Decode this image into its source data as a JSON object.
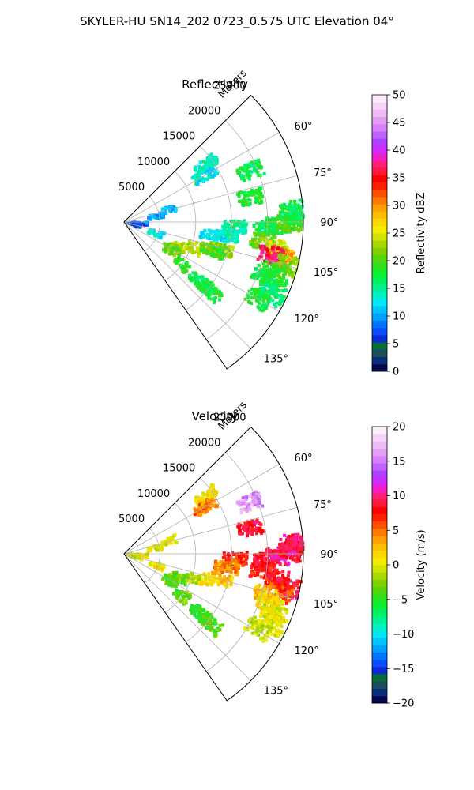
{
  "figure": {
    "title": "SKYLER-HU  SN14_202  0723_0.575 UTC Elevation 04°"
  },
  "chart_data": [
    {
      "type": "heatmap",
      "projection": "polar-sector",
      "title": "Reflectivity",
      "radial_label": "Meters",
      "radial_ticks": [
        5000,
        10000,
        15000,
        20000,
        25000
      ],
      "radial_tick_labels": [
        "5000",
        "10000",
        "15000",
        "20000",
        "25000"
      ],
      "r_range": [
        0,
        25000
      ],
      "azimuth_range_deg": [
        45,
        145
      ],
      "angle_ticks_deg": [
        60,
        75,
        90,
        105,
        120,
        135
      ],
      "angle_tick_labels": [
        "60°",
        "75°",
        "90°",
        "105°",
        "120°",
        "135°"
      ],
      "grid": true,
      "colorbar": {
        "label": "Reflectivity dBZ",
        "range": [
          0,
          50
        ],
        "ticks": [
          0,
          5,
          10,
          15,
          20,
          25,
          30,
          35,
          40,
          45,
          50
        ],
        "tick_labels": [
          "0",
          "5",
          "10",
          "15",
          "20",
          "25",
          "30",
          "35",
          "40",
          "45",
          "50"
        ],
        "colors": [
          "#06084e",
          "#0a2f7a",
          "#1d4d5a",
          "#0b6b3a",
          "#0a2ccf",
          "#0a4dff",
          "#0073ff",
          "#00a0ff",
          "#00c4ff",
          "#00e8f5",
          "#00f0c0",
          "#00f090",
          "#00f060",
          "#10ee30",
          "#30e020",
          "#55d410",
          "#80d000",
          "#a8d800",
          "#d0e400",
          "#f4ec00",
          "#ffd800",
          "#ffbf00",
          "#ffa000",
          "#ff7a00",
          "#ff5000",
          "#ff2000",
          "#ff0000",
          "#ff1a3c",
          "#ff1e78",
          "#f020c8",
          "#cf2cff",
          "#b040ff",
          "#c060ff",
          "#d880ff",
          "#e4a0f0",
          "#eebcf4",
          "#f6d6f8",
          "#fdecfc"
        ]
      },
      "echo_cells": [
        {
          "az": 93.0,
          "r": 19800,
          "value": 16
        },
        {
          "az": 91.5,
          "r": 21500,
          "value": 18
        },
        {
          "az": 90.0,
          "r": 23000,
          "value": 20
        },
        {
          "az": 88.0,
          "r": 24500,
          "value": 19
        },
        {
          "az": 86.0,
          "r": 23500,
          "value": 17
        },
        {
          "az": 92.5,
          "r": 15500,
          "value": 15
        },
        {
          "az": 98.0,
          "r": 19500,
          "value": 21
        },
        {
          "az": 100.0,
          "r": 21500,
          "value": 24
        },
        {
          "az": 103.0,
          "r": 22500,
          "value": 30
        },
        {
          "az": 102.5,
          "r": 21000,
          "value": 37
        },
        {
          "az": 105.0,
          "r": 23800,
          "value": 22
        },
        {
          "az": 108.0,
          "r": 22000,
          "value": 19
        },
        {
          "az": 110.5,
          "r": 21000,
          "value": 17
        },
        {
          "az": 113.0,
          "r": 22500,
          "value": 18
        },
        {
          "az": 116.0,
          "r": 23000,
          "value": 16
        },
        {
          "az": 120.0,
          "r": 21500,
          "value": 18
        },
        {
          "az": 105.5,
          "r": 14000,
          "value": 22
        },
        {
          "az": 110.0,
          "r": 10500,
          "value": 23
        },
        {
          "az": 114.0,
          "r": 8500,
          "value": 24
        },
        {
          "az": 118.0,
          "r": 8000,
          "value": 22
        },
        {
          "az": 121.0,
          "r": 7500,
          "value": 21
        },
        {
          "az": 126.0,
          "r": 10000,
          "value": 19
        },
        {
          "az": 128.0,
          "r": 13500,
          "value": 17
        },
        {
          "az": 129.0,
          "r": 15500,
          "value": 18
        },
        {
          "az": 108.0,
          "r": 13000,
          "value": 20
        },
        {
          "az": 97.5,
          "r": 14500,
          "value": 14
        },
        {
          "az": 98.5,
          "r": 12500,
          "value": 13
        },
        {
          "az": 110.0,
          "r": 4800,
          "value": 13
        },
        {
          "az": 79.0,
          "r": 18000,
          "value": 18
        },
        {
          "az": 68.0,
          "r": 19000,
          "value": 17
        },
        {
          "az": 55.0,
          "r": 14000,
          "value": 14
        },
        {
          "az": 60.0,
          "r": 13000,
          "value": 13
        },
        {
          "az": 74.0,
          "r": 6500,
          "value": 11
        },
        {
          "az": 80.0,
          "r": 4500,
          "value": 10
        },
        {
          "az": 95.0,
          "r": 2200,
          "value": 8
        },
        {
          "az": 105.0,
          "r": 1500,
          "value": 6
        }
      ]
    },
    {
      "type": "heatmap",
      "projection": "polar-sector",
      "title": "Velocity",
      "radial_label": "Meters",
      "radial_ticks": [
        5000,
        10000,
        15000,
        20000,
        25000
      ],
      "radial_tick_labels": [
        "5000",
        "10000",
        "15000",
        "20000",
        "25000"
      ],
      "r_range": [
        0,
        25000
      ],
      "azimuth_range_deg": [
        45,
        145
      ],
      "angle_ticks_deg": [
        60,
        75,
        90,
        105,
        120,
        135
      ],
      "angle_tick_labels": [
        "60°",
        "75°",
        "90°",
        "105°",
        "120°",
        "135°"
      ],
      "grid": true,
      "colorbar": {
        "label": "Velocity (m/s)",
        "range": [
          -20,
          20
        ],
        "ticks": [
          -20,
          -15,
          -10,
          -5,
          0,
          5,
          10,
          15,
          20
        ],
        "tick_labels": [
          "−20",
          "−15",
          "−10",
          "−5",
          "0",
          "5",
          "10",
          "15",
          "20"
        ],
        "colors": [
          "#06084e",
          "#0a2f7a",
          "#1d4d5a",
          "#0b6b3a",
          "#0a2ccf",
          "#0a4dff",
          "#0073ff",
          "#00a0ff",
          "#00c4ff",
          "#00e8f5",
          "#00f0c0",
          "#00f090",
          "#00f060",
          "#10ee30",
          "#30e020",
          "#55d410",
          "#80d000",
          "#a8d800",
          "#d0e400",
          "#f4ec00",
          "#ffd800",
          "#ffbf00",
          "#ffa000",
          "#ff7a00",
          "#ff5000",
          "#ff2000",
          "#ff0000",
          "#ff1a3c",
          "#ff1e78",
          "#f020c8",
          "#cf2cff",
          "#b040ff",
          "#c060ff",
          "#d880ff",
          "#e4a0f0",
          "#eebcf4",
          "#f6d6f8",
          "#fdecfc"
        ]
      },
      "echo_cells": [
        {
          "az": 93.0,
          "r": 19800,
          "value": 9
        },
        {
          "az": 91.0,
          "r": 21500,
          "value": 10
        },
        {
          "az": 89.5,
          "r": 23000,
          "value": 9
        },
        {
          "az": 88.0,
          "r": 24500,
          "value": 10
        },
        {
          "az": 86.5,
          "r": 23500,
          "value": 9
        },
        {
          "az": 92.5,
          "r": 15500,
          "value": 7
        },
        {
          "az": 97.0,
          "r": 19500,
          "value": 8
        },
        {
          "az": 99.5,
          "r": 21500,
          "value": 8
        },
        {
          "az": 102.0,
          "r": 23500,
          "value": 9
        },
        {
          "az": 104.0,
          "r": 22500,
          "value": 6
        },
        {
          "az": 106.0,
          "r": 20500,
          "value": 3
        },
        {
          "az": 109.0,
          "r": 21500,
          "value": 1
        },
        {
          "az": 112.0,
          "r": 22500,
          "value": 0
        },
        {
          "az": 115.5,
          "r": 23000,
          "value": 0
        },
        {
          "az": 119.0,
          "r": 21500,
          "value": -1
        },
        {
          "az": 105.0,
          "r": 14000,
          "value": 2
        },
        {
          "az": 107.5,
          "r": 12000,
          "value": 1
        },
        {
          "az": 110.0,
          "r": 10000,
          "value": -1
        },
        {
          "az": 114.0,
          "r": 8500,
          "value": -3
        },
        {
          "az": 118.0,
          "r": 8000,
          "value": -4
        },
        {
          "az": 121.0,
          "r": 7500,
          "value": -4
        },
        {
          "az": 126.0,
          "r": 10000,
          "value": -4
        },
        {
          "az": 128.0,
          "r": 13500,
          "value": -5
        },
        {
          "az": 129.0,
          "r": 15500,
          "value": -4
        },
        {
          "az": 97.5,
          "r": 14500,
          "value": 4
        },
        {
          "az": 110.0,
          "r": 4800,
          "value": 1
        },
        {
          "az": 78.5,
          "r": 18000,
          "value": 9
        },
        {
          "az": 68.0,
          "r": 19000,
          "value": 16
        },
        {
          "az": 55.0,
          "r": 14000,
          "value": 1
        },
        {
          "az": 60.0,
          "r": 13000,
          "value": 5
        },
        {
          "az": 74.0,
          "r": 6500,
          "value": 0
        },
        {
          "az": 80.0,
          "r": 4500,
          "value": 0
        },
        {
          "az": 95.0,
          "r": 2200,
          "value": 0
        },
        {
          "az": 105.0,
          "r": 1500,
          "value": 0
        }
      ]
    }
  ]
}
